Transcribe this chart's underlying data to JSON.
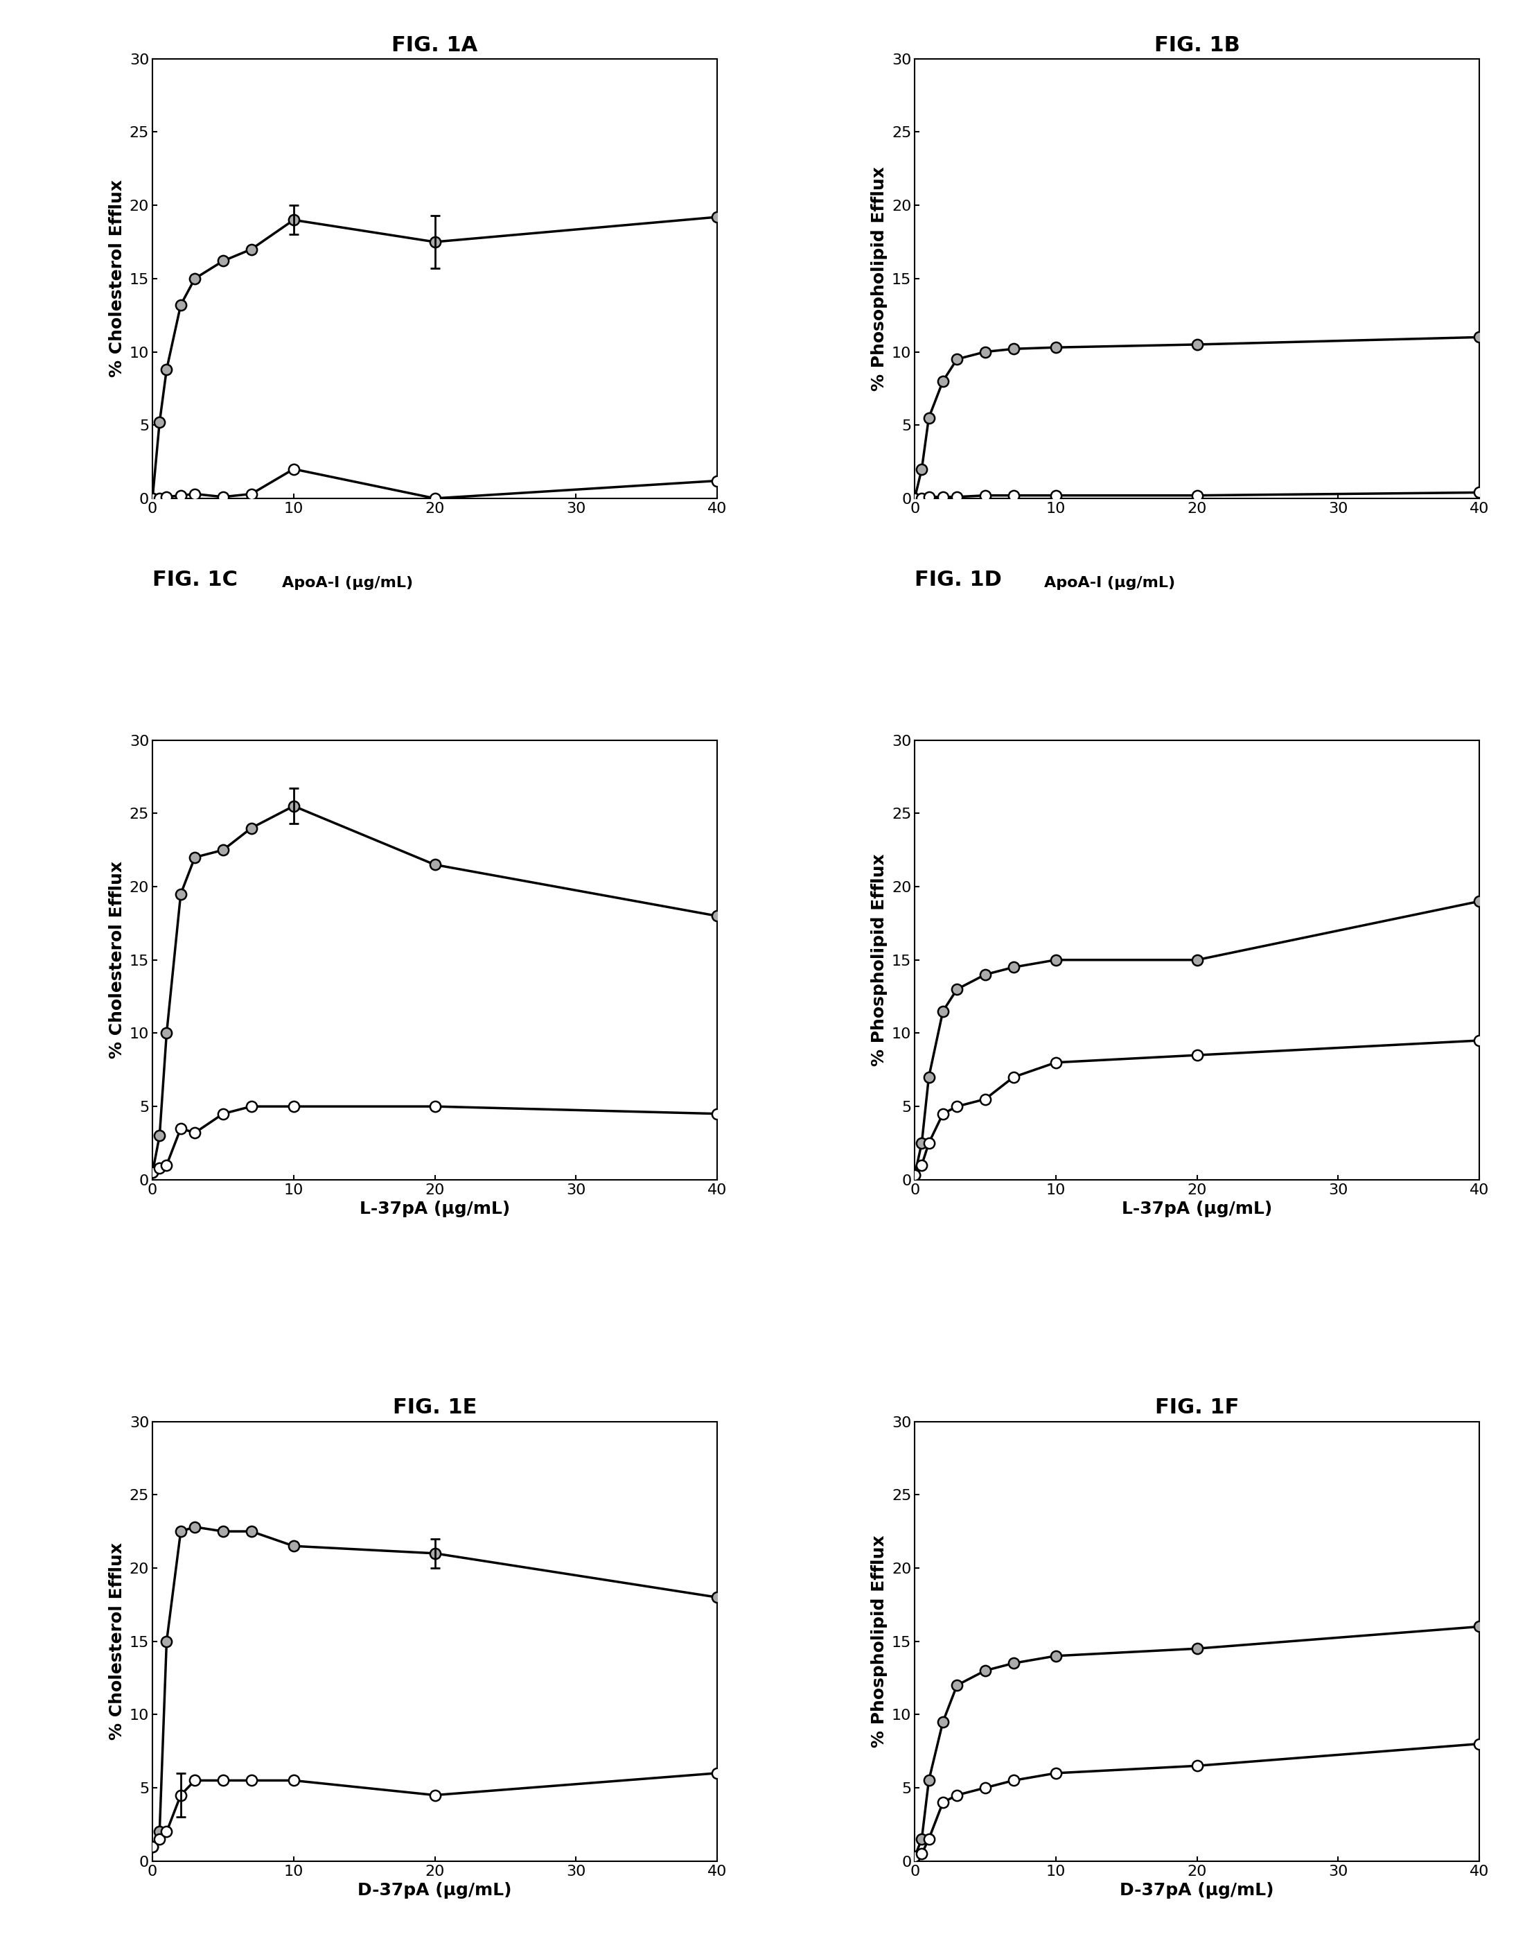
{
  "panels": [
    {
      "title": "FIG. 1A",
      "xlabel": "ApoA-I (μg/mL)",
      "ylabel": "% Cholesterol Efflux",
      "title_above": true,
      "ylim": [
        0,
        30
      ],
      "xlim": [
        0,
        40
      ],
      "xticks": [
        0,
        10,
        20,
        30,
        40
      ],
      "yticks": [
        0,
        5,
        10,
        15,
        20,
        25,
        30
      ],
      "series": [
        {
          "x": [
            0,
            0.5,
            1,
            2,
            3,
            5,
            7,
            10,
            20,
            40
          ],
          "y": [
            0,
            5.2,
            8.8,
            13.2,
            15.0,
            16.2,
            17.0,
            19.0,
            17.5,
            19.2
          ],
          "yerr": [
            0,
            0,
            0,
            0,
            0,
            0,
            0,
            1.0,
            1.8,
            0
          ],
          "filled": true
        },
        {
          "x": [
            0,
            0.5,
            1,
            2,
            3,
            5,
            7,
            10,
            20,
            40
          ],
          "y": [
            0,
            0.0,
            0.1,
            0.2,
            0.3,
            0.1,
            0.3,
            2.0,
            0.0,
            1.2
          ],
          "yerr": [
            0,
            0,
            0,
            0,
            0,
            0,
            0,
            0,
            0,
            0
          ],
          "filled": false
        }
      ]
    },
    {
      "title": "FIG. 1B",
      "xlabel": "ApoA-I (μg/mL)",
      "ylabel": "% Phosopholipid Efflux",
      "title_above": true,
      "ylim": [
        0,
        30
      ],
      "xlim": [
        0,
        40
      ],
      "xticks": [
        0,
        10,
        20,
        30,
        40
      ],
      "yticks": [
        0,
        5,
        10,
        15,
        20,
        25,
        30
      ],
      "series": [
        {
          "x": [
            0,
            0.5,
            1,
            2,
            3,
            5,
            7,
            10,
            20,
            40
          ],
          "y": [
            0,
            2.0,
            5.5,
            8.0,
            9.5,
            10.0,
            10.2,
            10.3,
            10.5,
            11.0
          ],
          "yerr": [
            0,
            0,
            0,
            0,
            0,
            0,
            0,
            0,
            0,
            0
          ],
          "filled": true
        },
        {
          "x": [
            0,
            0.5,
            1,
            2,
            3,
            5,
            7,
            10,
            20,
            40
          ],
          "y": [
            0,
            0.0,
            0.1,
            0.1,
            0.1,
            0.2,
            0.2,
            0.2,
            0.2,
            0.4
          ],
          "yerr": [
            0,
            0,
            0,
            0,
            0,
            0,
            0,
            0,
            0,
            0
          ],
          "filled": false
        }
      ]
    },
    {
      "title": "FIG. 1C",
      "xlabel": "L-37pA (μg/mL)",
      "ylabel": "% Cholesterol Efflux",
      "title_above": false,
      "ylim": [
        0,
        30
      ],
      "xlim": [
        0,
        40
      ],
      "xticks": [
        0,
        10,
        20,
        30,
        40
      ],
      "yticks": [
        0,
        5,
        10,
        15,
        20,
        25,
        30
      ],
      "series": [
        {
          "x": [
            0,
            0.5,
            1,
            2,
            3,
            5,
            7,
            10,
            20,
            40
          ],
          "y": [
            0.5,
            3.0,
            10.0,
            19.5,
            22.0,
            22.5,
            24.0,
            25.5,
            21.5,
            18.0
          ],
          "yerr": [
            0,
            0,
            0,
            0,
            0,
            0,
            0,
            1.2,
            0,
            0
          ],
          "filled": true
        },
        {
          "x": [
            0,
            0.5,
            1,
            2,
            3,
            5,
            7,
            10,
            20,
            40
          ],
          "y": [
            0.5,
            0.8,
            1.0,
            3.5,
            3.2,
            4.5,
            5.0,
            5.0,
            5.0,
            4.5
          ],
          "yerr": [
            0,
            0,
            0,
            0,
            0,
            0,
            0,
            0,
            0,
            0
          ],
          "filled": false
        }
      ]
    },
    {
      "title": "FIG. 1D",
      "xlabel": "L-37pA (μg/mL)",
      "ylabel": "% Phospholipid Efflux",
      "title_above": false,
      "ylim": [
        0,
        30
      ],
      "xlim": [
        0,
        40
      ],
      "xticks": [
        0,
        10,
        20,
        30,
        40
      ],
      "yticks": [
        0,
        5,
        10,
        15,
        20,
        25,
        30
      ],
      "series": [
        {
          "x": [
            0,
            0.5,
            1,
            2,
            3,
            5,
            7,
            10,
            20,
            40
          ],
          "y": [
            0.3,
            2.5,
            7.0,
            11.5,
            13.0,
            14.0,
            14.5,
            15.0,
            15.0,
            19.0
          ],
          "yerr": [
            0,
            0,
            0,
            0,
            0,
            0,
            0,
            0,
            0,
            0
          ],
          "filled": true
        },
        {
          "x": [
            0,
            0.5,
            1,
            2,
            3,
            5,
            7,
            10,
            20,
            40
          ],
          "y": [
            0.3,
            1.0,
            2.5,
            4.5,
            5.0,
            5.5,
            7.0,
            8.0,
            8.5,
            9.5
          ],
          "yerr": [
            0,
            0,
            0,
            0,
            0,
            0,
            0,
            0,
            0,
            0
          ],
          "filled": false
        }
      ]
    },
    {
      "title": "FIG. 1E",
      "xlabel": "D-37pA (μg/mL)",
      "ylabel": "% Cholesterol Efflux",
      "title_above": true,
      "ylim": [
        0,
        30
      ],
      "xlim": [
        0,
        40
      ],
      "xticks": [
        0,
        10,
        20,
        30,
        40
      ],
      "yticks": [
        0,
        5,
        10,
        15,
        20,
        25,
        30
      ],
      "series": [
        {
          "x": [
            0,
            0.5,
            1,
            2,
            3,
            5,
            7,
            10,
            20,
            40
          ],
          "y": [
            1.0,
            2.0,
            15.0,
            22.5,
            22.8,
            22.5,
            22.5,
            21.5,
            21.0,
            18.0
          ],
          "yerr": [
            0,
            0,
            0,
            0,
            0,
            0,
            0,
            0,
            1.0,
            0
          ],
          "filled": true
        },
        {
          "x": [
            0,
            0.5,
            1,
            2,
            3,
            5,
            7,
            10,
            20,
            40
          ],
          "y": [
            1.0,
            1.5,
            2.0,
            4.5,
            5.5,
            5.5,
            5.5,
            5.5,
            4.5,
            6.0
          ],
          "yerr": [
            0,
            0,
            0,
            1.5,
            0,
            0,
            0,
            0,
            0,
            0
          ],
          "filled": false
        }
      ]
    },
    {
      "title": "FIG. 1F",
      "xlabel": "D-37pA (μg/mL)",
      "ylabel": "% Phospholipid Efflux",
      "title_above": true,
      "ylim": [
        0,
        30
      ],
      "xlim": [
        0,
        40
      ],
      "xticks": [
        0,
        10,
        20,
        30,
        40
      ],
      "yticks": [
        0,
        5,
        10,
        15,
        20,
        25,
        30
      ],
      "series": [
        {
          "x": [
            0,
            0.5,
            1,
            2,
            3,
            5,
            7,
            10,
            20,
            40
          ],
          "y": [
            0.3,
            1.5,
            5.5,
            9.5,
            12.0,
            13.0,
            13.5,
            14.0,
            14.5,
            16.0
          ],
          "yerr": [
            0,
            0,
            0,
            0,
            0,
            0,
            0,
            0,
            0,
            0
          ],
          "filled": true
        },
        {
          "x": [
            0,
            0.5,
            1,
            2,
            3,
            5,
            7,
            10,
            20,
            40
          ],
          "y": [
            0.3,
            0.5,
            1.5,
            4.0,
            4.5,
            5.0,
            5.5,
            6.0,
            6.5,
            8.0
          ],
          "yerr": [
            0,
            0,
            0,
            0,
            0,
            0,
            0,
            0,
            0,
            0
          ],
          "filled": false
        }
      ]
    }
  ],
  "background_color": "#ffffff",
  "linewidth": 2.5,
  "markersize": 11,
  "title_fontsize": 22,
  "label_fontsize": 18,
  "tick_fontsize": 16,
  "errorbar_capsize": 5,
  "marker_edge_width": 1.8
}
